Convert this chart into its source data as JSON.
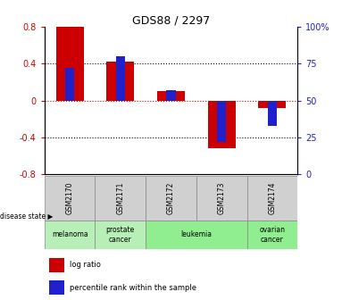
{
  "title": "GDS88 / 2297",
  "samples": [
    "GSM2170",
    "GSM2171",
    "GSM2172",
    "GSM2173",
    "GSM2174"
  ],
  "log_ratio": [
    0.8,
    0.42,
    0.1,
    -0.52,
    -0.08
  ],
  "percentile_rank": [
    72,
    80,
    57,
    22,
    33
  ],
  "ylim_left": [
    -0.8,
    0.8
  ],
  "ylim_right": [
    0,
    100
  ],
  "yticks_left": [
    -0.8,
    -0.4,
    0,
    0.4,
    0.8
  ],
  "yticks_right": [
    0,
    25,
    50,
    75,
    100
  ],
  "ytick_labels_left": [
    "-0.8",
    "-0.4",
    "0",
    "0.4",
    "0.8"
  ],
  "ytick_labels_right": [
    "0",
    "25",
    "50",
    "75",
    "100%"
  ],
  "bar_color_red": "#CC0000",
  "bar_color_blue": "#2020CC",
  "red_bar_width": 0.55,
  "blue_bar_width": 0.18,
  "legend_red_label": "log ratio",
  "legend_blue_label": "percentile rank within the sample",
  "disease_state_label": "disease state",
  "disease_groups": [
    {
      "label": "melanoma",
      "start": 0,
      "end": 0,
      "color": "#b8eeb8"
    },
    {
      "label": "prostate\ncancer",
      "start": 1,
      "end": 1,
      "color": "#b8eeb8"
    },
    {
      "label": "leukemia",
      "start": 2,
      "end": 3,
      "color": "#90EE90"
    },
    {
      "label": "ovarian\ncancer",
      "start": 4,
      "end": 4,
      "color": "#90EE90"
    }
  ],
  "sample_box_color": "#d0d0d0",
  "background_color": "#ffffff"
}
